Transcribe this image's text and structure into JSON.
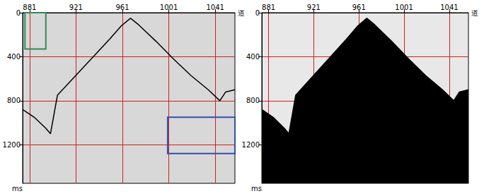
{
  "chart_data": [
    {
      "type": "line",
      "x_label": "道",
      "y_label": "ms",
      "xlim": [
        875,
        1058
      ],
      "xticks": [
        881,
        921,
        961,
        1001,
        1041
      ],
      "ylim": [
        0,
        1550
      ],
      "yticks": [
        0,
        400,
        800,
        1200
      ],
      "grid": true,
      "color": "#000000",
      "x": [
        875,
        885,
        895,
        899,
        905,
        920,
        935,
        950,
        960,
        968,
        975,
        990,
        1005,
        1020,
        1035,
        1045,
        1050,
        1058
      ],
      "values": [
        880,
        950,
        1050,
        1100,
        750,
        580,
        410,
        240,
        120,
        50,
        110,
        260,
        420,
        570,
        700,
        800,
        720,
        700
      ],
      "boxes": [
        {
          "x": [
            877,
            895
          ],
          "y": [
            0,
            330
          ],
          "color": "#2e8b57"
        },
        {
          "x": [
            1000,
            1058
          ],
          "y": [
            950,
            1280
          ],
          "color": "#3050b0"
        }
      ]
    },
    {
      "type": "area",
      "x_label": "道",
      "y_label": "ms",
      "xlim": [
        875,
        1058
      ],
      "xticks": [
        881,
        921,
        961,
        1001,
        1041
      ],
      "ylim": [
        0,
        1550
      ],
      "yticks": [
        0,
        400,
        800,
        1200
      ],
      "grid": true,
      "color": "#000000",
      "x": [
        875,
        885,
        895,
        899,
        905,
        920,
        935,
        950,
        960,
        968,
        975,
        990,
        1005,
        1020,
        1035,
        1045,
        1050,
        1058
      ],
      "values": [
        880,
        950,
        1050,
        1100,
        750,
        580,
        410,
        240,
        120,
        50,
        110,
        260,
        420,
        570,
        700,
        800,
        720,
        700
      ]
    }
  ]
}
